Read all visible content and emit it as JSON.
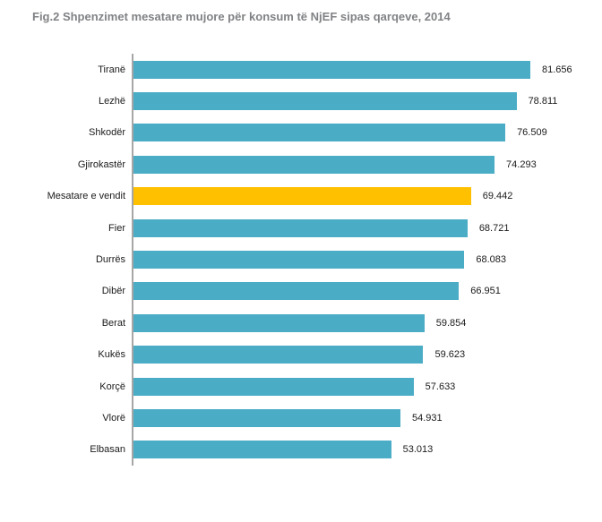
{
  "title": "Fig.2 Shpenzimet mesatare mujore për konsum të NjEF sipas qarqeve, 2014",
  "colors": {
    "bar": "#4bacc6",
    "highlight": "#ffc000",
    "axis": "#a6a6a6",
    "title_text": "#808285",
    "label_text": "#1a1a1a"
  },
  "chart_data": {
    "type": "bar",
    "orientation": "horizontal",
    "title": "Fig.2 Shpenzimet mesatare mujore për konsum të NjEF sipas qarqeve, 2014",
    "xlabel": "",
    "ylabel": "",
    "xlim": [
      0,
      88
    ],
    "grid": false,
    "legend": "none",
    "value_axis_visible": false,
    "category_axis_line": true,
    "categories": [
      "Tiranë",
      "Lezhë",
      "Shkodër",
      "Gjirokastër",
      "Mesatare e vendit",
      "Fier",
      "Durrës",
      "Dibër",
      "Berat",
      "Kukës",
      "Korçë",
      "Vlorë",
      "Elbasan"
    ],
    "values": [
      81.656,
      78.811,
      76.509,
      74.293,
      69.442,
      68.721,
      68.083,
      66.951,
      59.854,
      59.623,
      57.633,
      54.931,
      53.013
    ],
    "rows": [
      {
        "label": "Tiranë",
        "value": 81.656,
        "display": "81.656",
        "highlight": false
      },
      {
        "label": "Lezhë",
        "value": 78.811,
        "display": "78.811",
        "highlight": false
      },
      {
        "label": "Shkodër",
        "value": 76.509,
        "display": "76.509",
        "highlight": false
      },
      {
        "label": "Gjirokastër",
        "value": 74.293,
        "display": "74.293",
        "highlight": false
      },
      {
        "label": "Mesatare e vendit",
        "value": 69.442,
        "display": "69.442",
        "highlight": true
      },
      {
        "label": "Fier",
        "value": 68.721,
        "display": "68.721",
        "highlight": false
      },
      {
        "label": "Durrës",
        "value": 68.083,
        "display": "68.083",
        "highlight": false
      },
      {
        "label": "Dibër",
        "value": 66.951,
        "display": "66.951",
        "highlight": false
      },
      {
        "label": "Berat",
        "value": 59.854,
        "display": "59.854",
        "highlight": false
      },
      {
        "label": "Kukës",
        "value": 59.623,
        "display": "59.623",
        "highlight": false
      },
      {
        "label": "Korçë",
        "value": 57.633,
        "display": "57.633",
        "highlight": false
      },
      {
        "label": "Vlorë",
        "value": 54.931,
        "display": "54.931",
        "highlight": false
      },
      {
        "label": "Elbasan",
        "value": 53.013,
        "display": "53.013",
        "highlight": false
      }
    ]
  }
}
